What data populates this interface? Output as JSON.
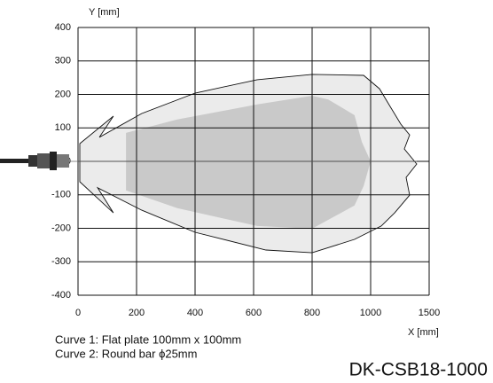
{
  "chart_data": {
    "type": "area",
    "y_label": "Y [mm]",
    "x_label": "X [mm]",
    "model": "DK-CSB18-1000",
    "xlim": [
      0,
      1500
    ],
    "ylim": [
      -400,
      400
    ],
    "xticks": [
      0,
      200,
      400,
      600,
      800,
      1000,
      1500
    ],
    "yticks": [
      -400,
      -300,
      -200,
      -100,
      0,
      100,
      200,
      300,
      400
    ],
    "grid": true,
    "series": [
      {
        "name": "Curve 1: Flat plate 100mm x 100mm",
        "color": "#ebebeb",
        "x": [
          6,
          121,
          73,
          218,
          400,
          612,
          800,
          976,
          1076,
          1167,
          1258,
          1333,
          1288,
          1394,
          1303,
          1333,
          1205,
          1091,
          945,
          800,
          642,
          400,
          218,
          67,
          121,
          6
        ],
        "y": [
          53,
          135,
          72,
          143,
          204,
          244,
          260,
          257,
          217,
          164,
          111,
          79,
          37,
          -8,
          -48,
          -101,
          -154,
          -193,
          -233,
          -273,
          -265,
          -212,
          -146,
          -79,
          -154,
          -61
        ]
      },
      {
        "name": "Curve 2: Round bar ϕ25mm",
        "color": "#c9c9c9",
        "x": [
          164,
          339,
          612,
          800,
          855,
          945,
          970,
          1000,
          976,
          945,
          800,
          612,
          339,
          164
        ],
        "y": [
          85,
          125,
          170,
          196,
          185,
          138,
          58,
          0,
          -74,
          -132,
          -201,
          -193,
          -140,
          -87
        ]
      }
    ]
  }
}
